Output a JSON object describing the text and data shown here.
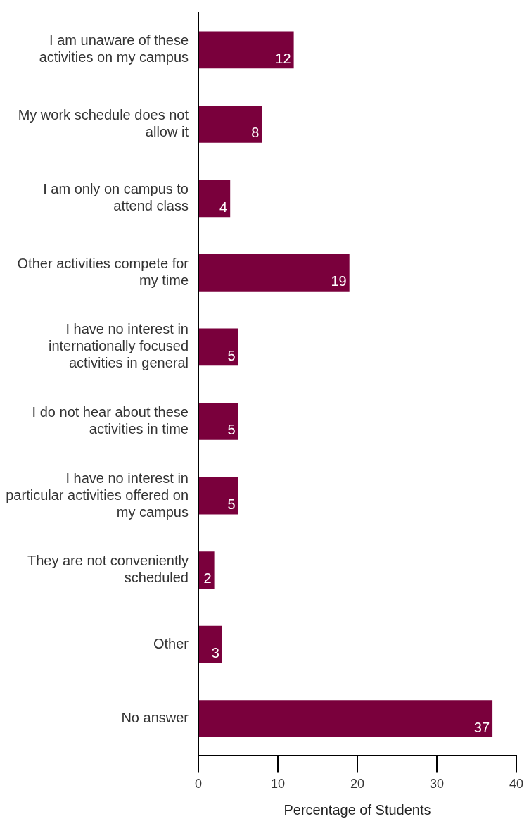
{
  "chart_data": {
    "type": "bar",
    "orientation": "horizontal",
    "xlabel": "Percentage of Students",
    "categories": [
      "I am unaware of these activities on my campus",
      "My work schedule does not allow it",
      "I am only on campus to attend class",
      "Other activities compete for my time",
      "I have no interest in internationally focused activities in general",
      "I do not hear about these activities in time",
      "I have no interest in particular activities offered on my campus",
      "They are not conveniently scheduled",
      "Other",
      "No answer"
    ],
    "values": [
      12,
      8,
      4,
      19,
      5,
      5,
      5,
      2,
      3,
      37
    ],
    "color": "#7a003c",
    "xlim": [
      0,
      40
    ],
    "xticks": [
      0,
      10,
      20,
      30,
      40
    ],
    "data_labels": true,
    "legend": false
  }
}
